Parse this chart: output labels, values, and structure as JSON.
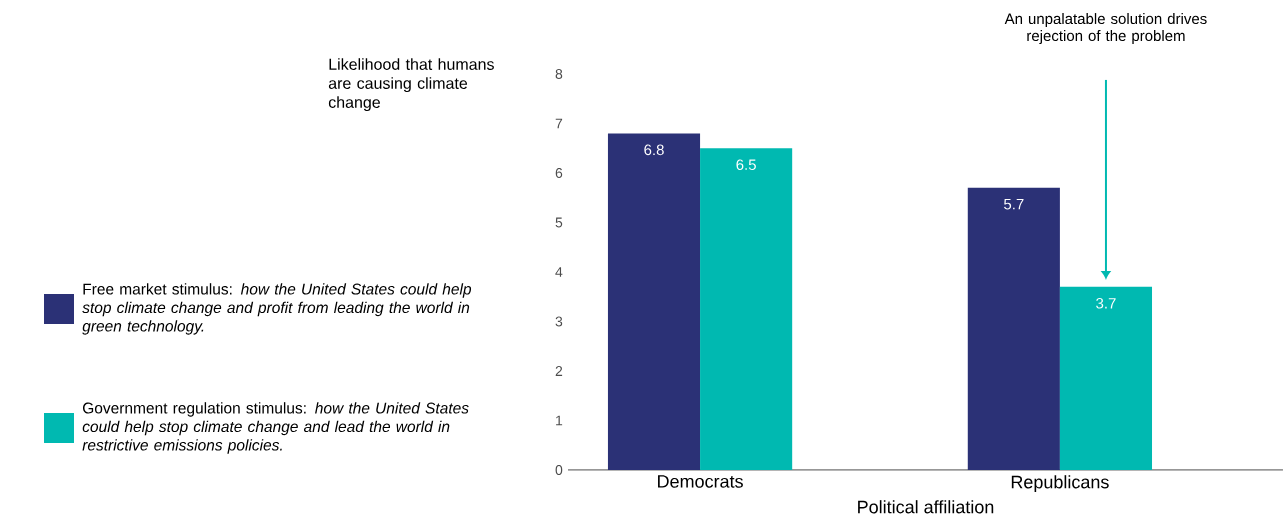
{
  "chart_data": {
    "type": "bar",
    "ylabel": "Likelihood that humans are causing climate change",
    "xlabel": "Political affiliation",
    "categories": [
      "Democrats",
      "Republicans"
    ],
    "series": [
      {
        "name": "Free market stimulus: *how the United States could help stop climate change and profit from leading the world in green technology.*",
        "color": "#2b3176",
        "values": [
          6.8,
          5.7
        ]
      },
      {
        "name": "Government regulation stimulus: *how the United States could help stop climate change and lead the world in restrictive emissions policies.*",
        "color": "#00b9b1",
        "values": [
          6.5,
          3.7
        ]
      }
    ],
    "ylim": [
      0,
      8
    ],
    "yticks": [
      0,
      1,
      2,
      3,
      4,
      5,
      6,
      7,
      8
    ],
    "data_labels": true,
    "legend": "left",
    "annotations": [
      "An unpalatable solution drives rejection of the problem"
    ]
  }
}
